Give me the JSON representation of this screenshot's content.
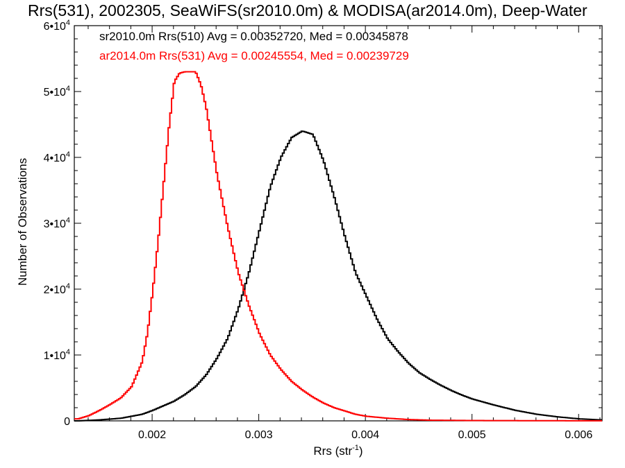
{
  "chart_data": {
    "type": "line",
    "title": "Rrs(531), 2002305, SeaWiFS(sr2010.0m) & MODISA(ar2014.0m), Deep-Water",
    "xlabel": "Rrs (str",
    "xlabel_sup": "-1",
    "xlabel_close": ")",
    "ylabel": "Number of Observations",
    "xlim": [
      0.00127,
      0.00622
    ],
    "ylim": [
      0,
      60000
    ],
    "x_ticks": [
      {
        "value": 0.002,
        "label": "0.002"
      },
      {
        "value": 0.003,
        "label": "0.003"
      },
      {
        "value": 0.004,
        "label": "0.004"
      },
      {
        "value": 0.005,
        "label": "0.005"
      },
      {
        "value": 0.006,
        "label": "0.006"
      }
    ],
    "y_ticks": [
      {
        "value": 0,
        "mantissa": "0",
        "exp": ""
      },
      {
        "value": 10000,
        "mantissa": "1•10",
        "exp": "4"
      },
      {
        "value": 20000,
        "mantissa": "2•10",
        "exp": "4"
      },
      {
        "value": 30000,
        "mantissa": "3•10",
        "exp": "4"
      },
      {
        "value": 40000,
        "mantissa": "4•10",
        "exp": "4"
      },
      {
        "value": 50000,
        "mantissa": "5•10",
        "exp": "4"
      },
      {
        "value": 60000,
        "mantissa": "6•10",
        "exp": "4"
      }
    ],
    "legend": [
      {
        "text": "sr2010.0m Rrs(510) Avg = 0.00352720, Med = 0.00345878",
        "color": "#000000"
      },
      {
        "text": "ar2014.0m Rrs(531) Avg = 0.00245554, Med = 0.00239729",
        "color": "#ff0000"
      }
    ],
    "series": [
      {
        "color": "#000000",
        "x": [
          0.0013,
          0.0015,
          0.0017,
          0.0019,
          0.002,
          0.0021,
          0.0022,
          0.0023,
          0.0024,
          0.0025,
          0.0026,
          0.0027,
          0.0028,
          0.0029,
          0.003,
          0.0031,
          0.0032,
          0.0033,
          0.0034,
          0.0035,
          0.0036,
          0.0037,
          0.0038,
          0.0039,
          0.004,
          0.0041,
          0.0042,
          0.0043,
          0.0044,
          0.0045,
          0.0046,
          0.0047,
          0.0048,
          0.0049,
          0.005,
          0.0052,
          0.0054,
          0.0056,
          0.0058,
          0.006,
          0.0062
        ],
        "y": [
          0,
          150,
          400,
          1000,
          1600,
          2300,
          3000,
          4000,
          5200,
          7000,
          9500,
          12500,
          17000,
          22500,
          29000,
          35500,
          40000,
          43000,
          44000,
          43500,
          39500,
          34000,
          28000,
          22500,
          19000,
          15500,
          12500,
          10500,
          8700,
          7300,
          6300,
          5400,
          4600,
          3900,
          3300,
          2400,
          1600,
          1000,
          600,
          300,
          150
        ]
      },
      {
        "color": "#ff0000",
        "x": [
          0.0013,
          0.0014,
          0.0015,
          0.0016,
          0.0017,
          0.0018,
          0.0019,
          0.00195,
          0.002,
          0.00205,
          0.0021,
          0.00215,
          0.0022,
          0.00225,
          0.0023,
          0.00235,
          0.0024,
          0.00245,
          0.0025,
          0.00255,
          0.0026,
          0.0027,
          0.0028,
          0.0029,
          0.003,
          0.0031,
          0.0032,
          0.0033,
          0.0034,
          0.0035,
          0.0036,
          0.0037,
          0.0038,
          0.0039,
          0.004,
          0.0042,
          0.0044,
          0.0046,
          0.005,
          0.0055,
          0.0062
        ],
        "y": [
          300,
          800,
          1600,
          2500,
          3500,
          5200,
          9000,
          13500,
          20000,
          27500,
          36000,
          44500,
          51500,
          52800,
          53000,
          53000,
          53000,
          51000,
          47500,
          42500,
          37500,
          29500,
          22500,
          17500,
          13200,
          10000,
          7800,
          6000,
          4700,
          3600,
          2700,
          2000,
          1500,
          1000,
          700,
          400,
          200,
          100,
          50,
          30,
          10
        ]
      }
    ]
  }
}
